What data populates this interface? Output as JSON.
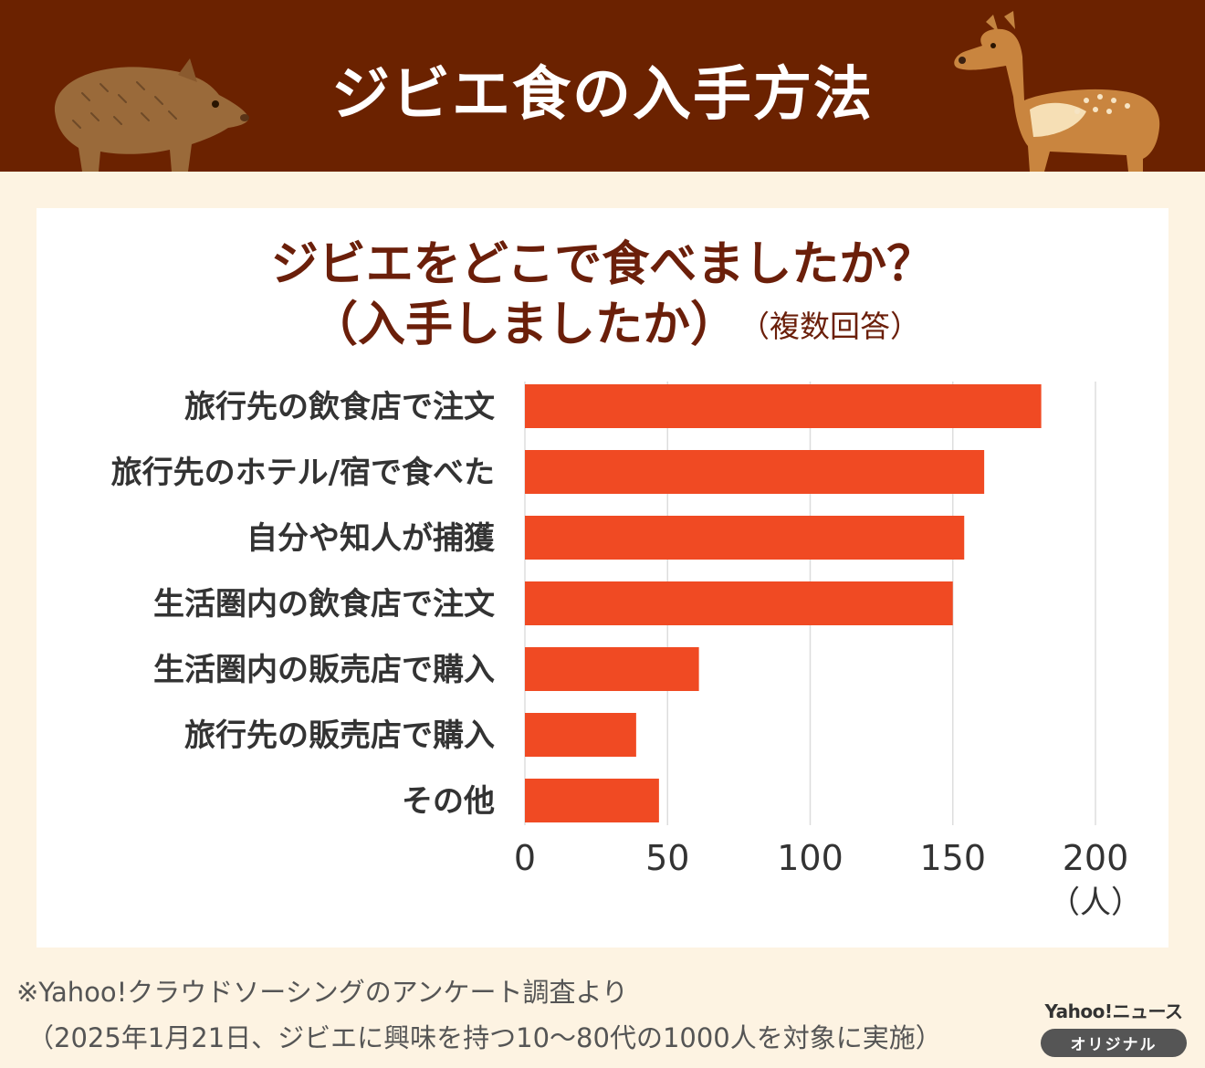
{
  "header": {
    "title": "ジビエ食の入手方法"
  },
  "panel": {
    "title_line1": "ジビエをどこで食べましたか？",
    "title_line2": "（入手しましたか）",
    "note": "（複数回答）"
  },
  "chart_data": {
    "type": "bar",
    "orientation": "horizontal",
    "categories": [
      "旅行先の飲食店で注文",
      "旅行先のホテル/宿で食べた",
      "自分や知人が捕獲",
      "生活圏内の飲食店で注文",
      "生活圏内の販売店で購入",
      "旅行先の販売店で購入",
      "その他"
    ],
    "values": [
      181,
      161,
      154,
      150,
      61,
      39,
      47
    ],
    "xlim": [
      0,
      200
    ],
    "xticks": [
      0,
      50,
      100,
      150,
      200
    ],
    "xunit": "（人）",
    "grid": true,
    "bar_color": "#f04a23"
  },
  "footer": {
    "note_line1": "※Yahoo!クラウドソーシングのアンケート調査より",
    "note_line2": "（2025年1月21日、ジビエに興味を持つ10〜80代の1000人を対象に実施）",
    "brand_name": "Yahoo!ニュース",
    "brand_badge": "オリジナル"
  }
}
